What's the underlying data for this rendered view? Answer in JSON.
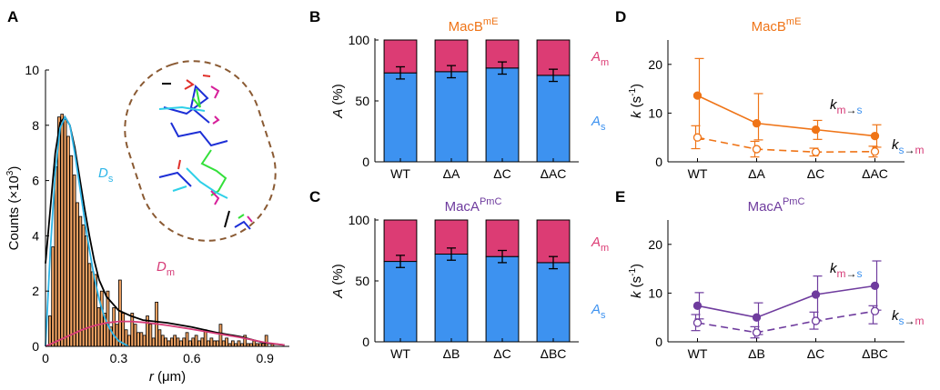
{
  "colors": {
    "bar_orange": "#f0a262",
    "cyan": "#2fb6e8",
    "magenta": "#d63c78",
    "dark": "#000000",
    "blue_fill": "#3d92f0",
    "pink_fill": "#dc3c74",
    "orange": "#ef7417",
    "purple": "#6f3c9e",
    "cell_outline": "#8a5a33"
  },
  "chart_data": [
    {
      "id": "A",
      "panel_label": "A",
      "type": "bar",
      "xlabel_pre": "r",
      "xlabel_unit": " (μm)",
      "ylabel": "Counts (×10",
      "ylabel_exp": "3",
      "ylabel_close": ")",
      "xlim": [
        0,
        1.0
      ],
      "ylim": [
        0,
        10
      ],
      "xticks": [
        0,
        0.3,
        0.6,
        0.9
      ],
      "xtick_labels": [
        "0",
        "0.3",
        "0.6",
        "0.9"
      ],
      "yticks": [
        0,
        2,
        4,
        6,
        8,
        10
      ],
      "ytick_labels": [
        "0",
        "2",
        "4",
        "6",
        "8",
        "10"
      ],
      "bin_width": 0.0125,
      "bin_starts": [
        0.0,
        0.0125,
        0.025,
        0.0375,
        0.05,
        0.0625,
        0.075,
        0.0875,
        0.1,
        0.1125,
        0.125,
        0.1375,
        0.15,
        0.1625,
        0.175,
        0.1875,
        0.2,
        0.2125,
        0.225,
        0.2375,
        0.25,
        0.2625,
        0.275,
        0.2875,
        0.3,
        0.3125,
        0.325,
        0.3375,
        0.35,
        0.3625,
        0.375,
        0.3875,
        0.4,
        0.4125,
        0.425,
        0.4375,
        0.45,
        0.4625,
        0.475,
        0.4875,
        0.5,
        0.5125,
        0.525,
        0.5375,
        0.55,
        0.5625,
        0.575,
        0.5875,
        0.6,
        0.6125,
        0.625,
        0.6375,
        0.65,
        0.6625,
        0.675,
        0.6875,
        0.7,
        0.7125,
        0.725,
        0.7375,
        0.75,
        0.7625,
        0.775,
        0.7875,
        0.8,
        0.8125,
        0.825,
        0.8375,
        0.85,
        0.8625,
        0.875,
        0.8875,
        0.9,
        0.9125,
        0.925
      ],
      "counts": [
        0,
        1.1,
        3.6,
        6.5,
        8.3,
        8.4,
        8.2,
        7.6,
        6.9,
        6.2,
        5.2,
        4.7,
        4.4,
        4.0,
        3.0,
        2.7,
        2.6,
        1.4,
        2.0,
        1.2,
        2.0,
        0.7,
        1.4,
        0.8,
        2.4,
        1.2,
        0.6,
        0.4,
        1.2,
        0.8,
        0.5,
        0.5,
        0.4,
        1.1,
        0.8,
        0.3,
        1.6,
        0.6,
        0.4,
        0.3,
        0.2,
        0.3,
        0.4,
        0.3,
        0.2,
        0.3,
        0.5,
        0.2,
        0.3,
        0.4,
        0.2,
        0.3,
        0.6,
        0.2,
        0.3,
        0.2,
        0.2,
        0.8,
        0.2,
        0.3,
        0.1,
        0.2,
        0.1,
        0.2,
        0.1,
        0.4,
        0.1,
        0.1,
        0.2,
        0.1,
        0.1,
        0.1,
        0.4,
        0.0,
        0.1
      ],
      "series": [
        {
          "name": "total",
          "x": [
            0.0,
            0.02,
            0.04,
            0.06,
            0.08,
            0.1,
            0.12,
            0.14,
            0.16,
            0.18,
            0.2,
            0.22,
            0.25,
            0.3,
            0.35,
            0.4,
            0.5,
            0.6,
            0.7,
            0.8,
            0.9,
            0.98
          ],
          "y": [
            3.0,
            5.0,
            7.0,
            8.1,
            8.3,
            8.0,
            7.2,
            6.1,
            5.0,
            4.0,
            3.1,
            2.4,
            1.8,
            1.3,
            1.1,
            0.95,
            0.85,
            0.7,
            0.5,
            0.35,
            0.12,
            0.05
          ]
        },
        {
          "name": "D_s",
          "x": [
            0.0,
            0.02,
            0.04,
            0.06,
            0.08,
            0.1,
            0.12,
            0.14,
            0.16,
            0.18,
            0.2,
            0.22,
            0.24,
            0.26,
            0.28,
            0.3,
            0.32,
            0.34
          ],
          "y": [
            0.0,
            3.5,
            6.3,
            7.9,
            8.3,
            8.0,
            7.0,
            5.8,
            4.6,
            3.5,
            2.5,
            1.7,
            1.1,
            0.7,
            0.4,
            0.2,
            0.1,
            0.0
          ]
        },
        {
          "name": "D_m",
          "x": [
            0.0,
            0.05,
            0.1,
            0.15,
            0.2,
            0.25,
            0.3,
            0.35,
            0.4,
            0.45,
            0.5,
            0.6,
            0.7,
            0.8,
            0.9,
            0.98
          ],
          "y": [
            0.0,
            0.2,
            0.4,
            0.6,
            0.75,
            0.85,
            0.9,
            0.9,
            0.87,
            0.82,
            0.76,
            0.62,
            0.47,
            0.32,
            0.14,
            0.05
          ]
        }
      ],
      "labels": [
        {
          "key": "D_s",
          "base": "D",
          "sub": "s"
        },
        {
          "key": "D_m",
          "base": "D",
          "sub": "m"
        }
      ]
    },
    {
      "id": "B",
      "panel_label": "B",
      "type": "bar",
      "title_base": "MacB",
      "title_sup": "mE",
      "categories": [
        "WT",
        "ΔA",
        "ΔC",
        "ΔAC"
      ],
      "ylabel_var": "A",
      "ylabel_unit": " (%)",
      "ylim": [
        0,
        100
      ],
      "yticks": [
        0,
        50,
        100
      ],
      "ytick_labels": [
        "0",
        "50",
        "100"
      ],
      "series": [
        {
          "name": "A_s",
          "values": [
            73,
            74,
            77,
            71
          ],
          "errors": [
            5,
            5,
            5,
            5
          ]
        },
        {
          "name": "A_m",
          "values": [
            27,
            26,
            23,
            29
          ]
        }
      ],
      "labels": [
        {
          "key": "A_m",
          "base": "A",
          "sub": "m"
        },
        {
          "key": "A_s",
          "base": "A",
          "sub": "s"
        }
      ]
    },
    {
      "id": "C",
      "panel_label": "C",
      "type": "bar",
      "title_base": "MacA",
      "title_sup": "PmC",
      "categories": [
        "WT",
        "ΔB",
        "ΔC",
        "ΔBC"
      ],
      "ylabel_var": "A",
      "ylabel_unit": " (%)",
      "ylim": [
        0,
        100
      ],
      "yticks": [
        0,
        50,
        100
      ],
      "ytick_labels": [
        "0",
        "50",
        "100"
      ],
      "series": [
        {
          "name": "A_s",
          "values": [
            66,
            72,
            70,
            65
          ],
          "errors": [
            5,
            5,
            5,
            5
          ]
        },
        {
          "name": "A_m",
          "values": [
            34,
            28,
            30,
            35
          ]
        }
      ],
      "labels": [
        {
          "key": "A_m",
          "base": "A",
          "sub": "m"
        },
        {
          "key": "A_s",
          "base": "A",
          "sub": "s"
        }
      ]
    },
    {
      "id": "D",
      "panel_label": "D",
      "type": "line",
      "title_base": "MacB",
      "title_sup": "mE",
      "categories": [
        "WT",
        "ΔA",
        "ΔC",
        "ΔAC"
      ],
      "ylabel_var": "k",
      "ylabel_unit": " (s",
      "ylabel_sup": "-1",
      "ylabel_close": ")",
      "ylim": [
        0,
        25
      ],
      "yticks": [
        0,
        10,
        20
      ],
      "ytick_labels": [
        "0",
        "10",
        "20"
      ],
      "series": [
        {
          "name": "k_m->s",
          "values": [
            13.6,
            7.9,
            6.6,
            5.3
          ],
          "err_low": [
            9.0,
            3.4,
            2.0,
            2.3
          ],
          "err_high": [
            7.6,
            6.1,
            1.9,
            2.3
          ]
        },
        {
          "name": "k_s->m",
          "values": [
            5.0,
            2.6,
            2.0,
            2.1
          ],
          "err_low": [
            2.3,
            1.6,
            0.8,
            1.1
          ],
          "err_high": [
            2.4,
            1.6,
            0.8,
            1.1
          ]
        }
      ],
      "labels": [
        {
          "key": "k_m->s",
          "base": "k",
          "sub_from": "m",
          "sub_to": "s"
        },
        {
          "key": "k_s->m",
          "base": "k",
          "sub_from": "s",
          "sub_to": "m"
        }
      ]
    },
    {
      "id": "E",
      "panel_label": "E",
      "type": "line",
      "title_base": "MacA",
      "title_sup": "PmC",
      "categories": [
        "WT",
        "ΔB",
        "ΔC",
        "ΔBC"
      ],
      "ylabel_var": "k",
      "ylabel_unit": " (s",
      "ylabel_sup": "-1",
      "ylabel_close": ")",
      "ylim": [
        0,
        25
      ],
      "yticks": [
        0,
        10,
        20
      ],
      "ytick_labels": [
        "0",
        "10",
        "20"
      ],
      "series": [
        {
          "name": "k_m->s",
          "values": [
            7.4,
            5.0,
            9.7,
            11.5
          ],
          "err_low": [
            2.7,
            3.5,
            5.4,
            5.0
          ],
          "err_high": [
            2.7,
            3.0,
            3.8,
            5.1
          ]
        },
        {
          "name": "k_s->m",
          "values": [
            3.9,
            1.9,
            4.3,
            6.3
          ],
          "err_low": [
            1.6,
            1.1,
            1.7,
            2.6
          ],
          "err_high": [
            1.7,
            1.2,
            1.8,
            1.1
          ]
        }
      ],
      "labels": [
        {
          "key": "k_m->s",
          "base": "k",
          "sub_from": "m",
          "sub_to": "s"
        },
        {
          "key": "k_s->m",
          "base": "k",
          "sub_from": "s",
          "sub_to": "m"
        }
      ]
    }
  ]
}
